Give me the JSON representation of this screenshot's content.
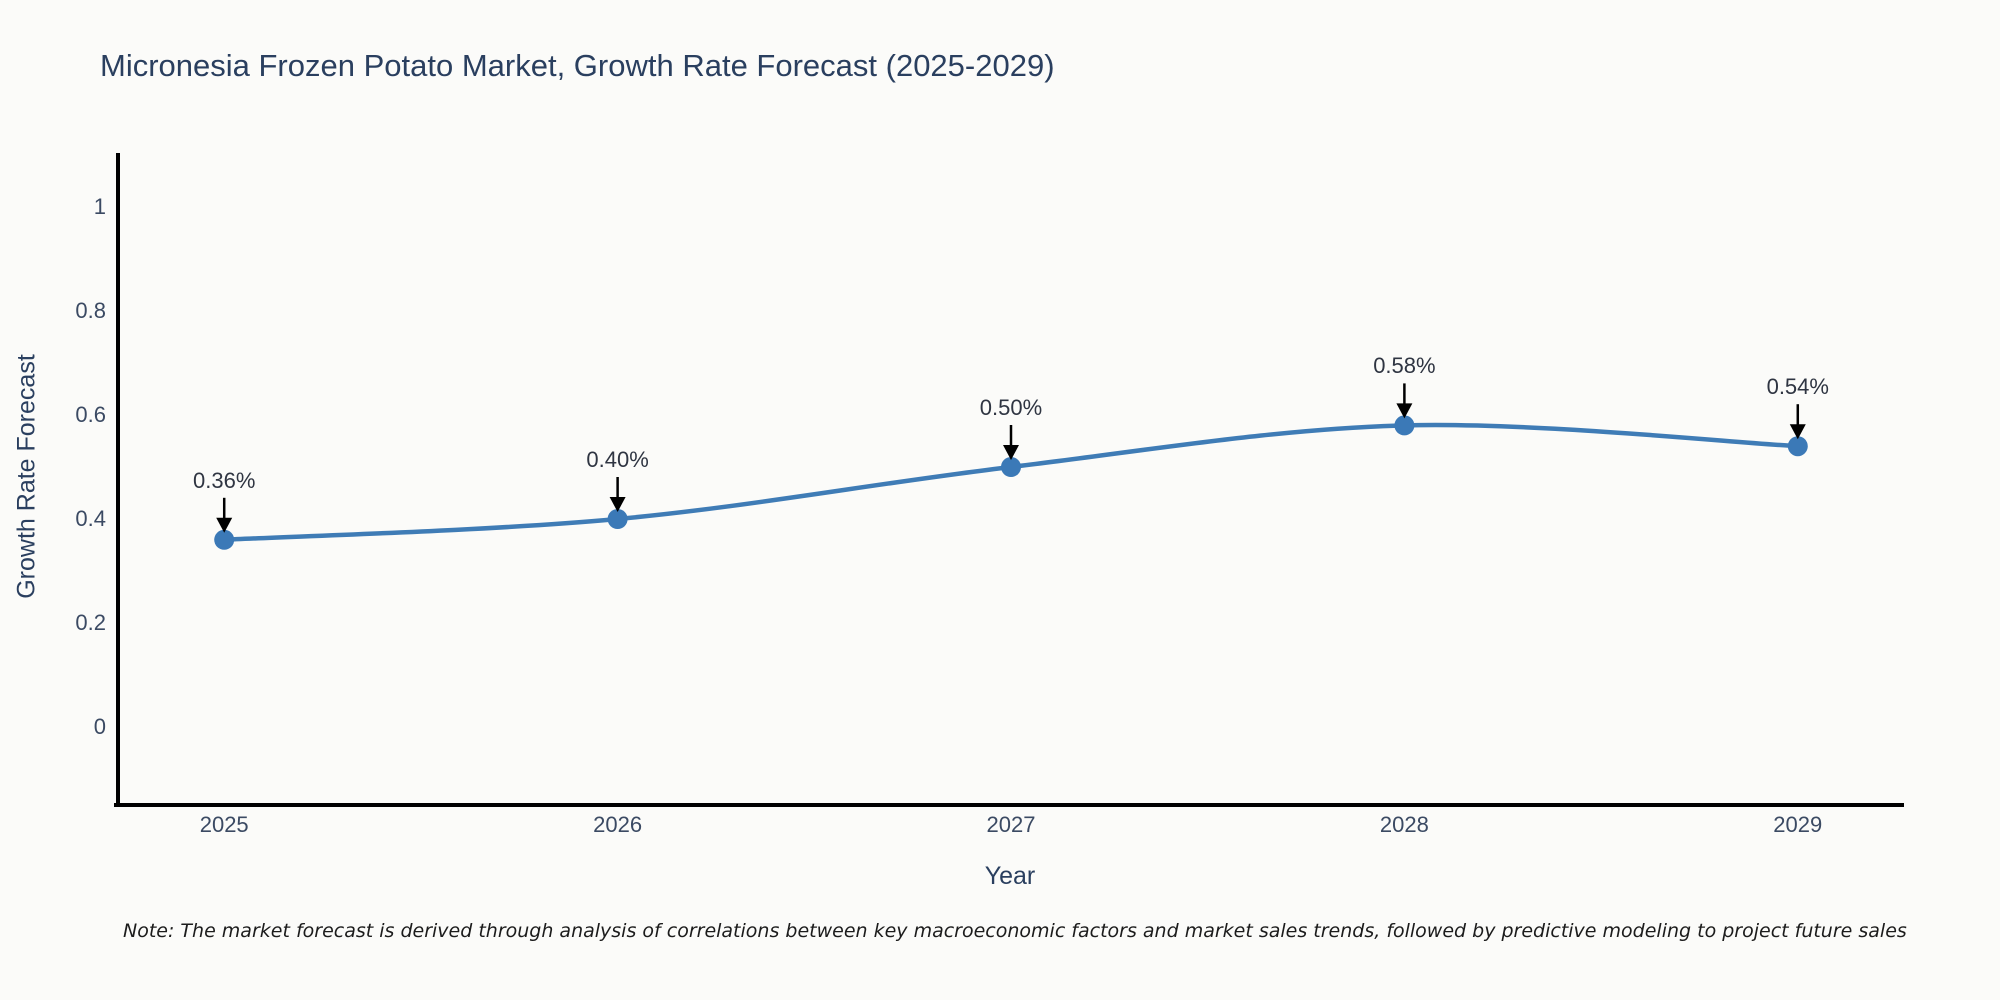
{
  "title": "Micronesia Frozen Potato Market, Growth Rate Forecast (2025-2029)",
  "note": "Note: The market forecast is derived through analysis of correlations between key macroeconomic factors and market sales trends, followed by predictive modeling to project future sales",
  "chart_data": {
    "type": "line",
    "title": "Micronesia Frozen Potato Market, Growth Rate Forecast (2025-2029)",
    "xlabel": "Year",
    "ylabel": "Growth Rate Forecast",
    "x": [
      2025,
      2026,
      2027,
      2028,
      2029
    ],
    "x_tick_labels": [
      "2025",
      "2026",
      "2027",
      "2028",
      "2029"
    ],
    "series": [
      {
        "name": "Growth Rate Forecast",
        "values": [
          0.36,
          0.4,
          0.5,
          0.58,
          0.54
        ]
      }
    ],
    "point_labels": [
      "0.36%",
      "0.40%",
      "0.50%",
      "0.58%",
      "0.54%"
    ],
    "yticks": [
      0,
      0.2,
      0.4,
      0.6,
      0.8,
      1
    ],
    "ytick_labels": [
      "0",
      "0.2",
      "0.4",
      "0.6",
      "0.8",
      "1"
    ],
    "ylim": [
      -0.15,
      1.1
    ],
    "xlim": [
      2024.73,
      2029.27
    ],
    "grid": false,
    "legend_position": "none",
    "annotation_style": "value labels with downward arrows above each point",
    "colors": {
      "line": "#3f7cb6",
      "marker": "#3b79b7",
      "axis": "#000000",
      "title_text": "#2a3f5f",
      "tick_text": "#3b4a63",
      "annotation_text": "#2f3542",
      "note_text": "#1c1c1c",
      "background": "#fbfbf9"
    }
  }
}
